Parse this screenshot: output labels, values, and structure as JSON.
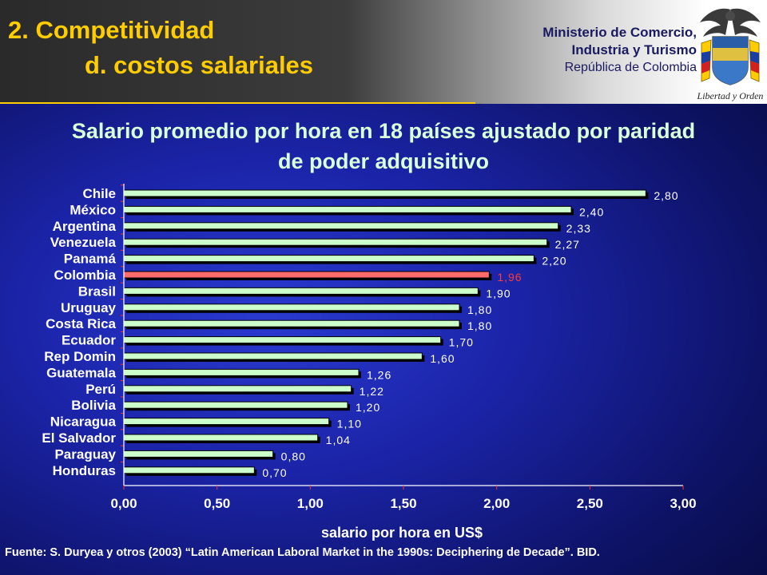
{
  "header": {
    "title_line1": "2. Competitividad",
    "title_line2": "d. costos salariales",
    "ministry_line1": "Ministerio de Comercio,",
    "ministry_line2": "Industria y Turismo",
    "ministry_line3": "República de Colombia",
    "seal_motto": "Libertad y Orden"
  },
  "chart_title_line1": "Salario promedio por hora en 18 países ajustado por paridad",
  "chart_title_line2": "de poder adquisitivo",
  "chart_data": {
    "type": "bar",
    "orientation": "horizontal",
    "categories": [
      "Chile",
      "México",
      "Argentina",
      "Venezuela",
      "Panamá",
      "Colombia",
      "Brasil",
      "Uruguay",
      "Costa Rica",
      "Ecuador",
      "Rep Domin",
      "Guatemala",
      "Perú",
      "Bolivia",
      "Nicaragua",
      "El Salvador",
      "Paraguay",
      "Honduras"
    ],
    "values": [
      2.8,
      2.4,
      2.33,
      2.27,
      2.2,
      1.96,
      1.9,
      1.8,
      1.8,
      1.7,
      1.6,
      1.26,
      1.22,
      1.2,
      1.1,
      1.04,
      0.8,
      0.7
    ],
    "value_labels": [
      "2,80",
      "2,40",
      "2,33",
      "2,27",
      "2,20",
      "1,96",
      "1,90",
      "1,80",
      "1,80",
      "1,70",
      "1,60",
      "1,26",
      "1,22",
      "1,20",
      "1,10",
      "1,04",
      "0,80",
      "0,70"
    ],
    "highlight_category": "Colombia",
    "xlim": [
      0,
      3.0
    ],
    "xticks": [
      "0,00",
      "0,50",
      "1,00",
      "1,50",
      "2,00",
      "2,50",
      "3,00"
    ],
    "xlabel": "salario por hora en US$",
    "ylabel": "",
    "grid": false,
    "colors": {
      "bar": "#ccffcc",
      "highlight_bar": "#ff6a6a",
      "label": "#ffffff",
      "highlight_label": "#ff3b3b",
      "axis": "#ffffff",
      "category_text": "#ffffff"
    }
  },
  "footer": "Fuente: S. Duryea y otros (2003) “Latin American Laboral Market in the 1990s: Deciphering de Decade”. BID."
}
